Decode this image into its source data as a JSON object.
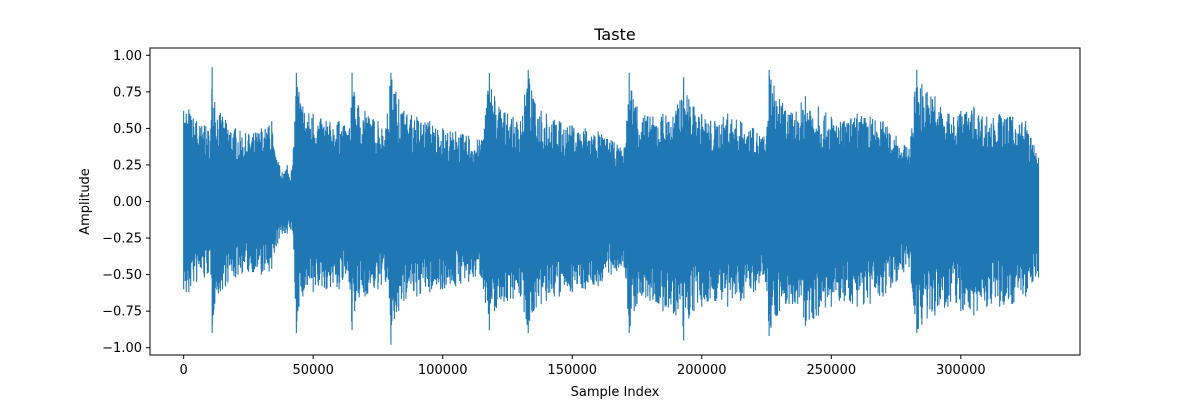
{
  "chart_data": {
    "type": "line",
    "title": "Taste",
    "xlabel": "Sample Index",
    "ylabel": "Amplitude",
    "xlim": [
      -13000,
      346000
    ],
    "ylim": [
      -1.05,
      1.05
    ],
    "x_ticks": [
      0,
      50000,
      100000,
      150000,
      200000,
      250000,
      300000
    ],
    "x_tick_labels": [
      "0",
      "50000",
      "100000",
      "150000",
      "200000",
      "250000",
      "300000"
    ],
    "y_ticks": [
      1.0,
      0.75,
      0.5,
      0.25,
      0.0,
      -0.25,
      -0.5,
      -0.75,
      -1.0
    ],
    "y_tick_labels": [
      "1.00",
      "0.75",
      "0.50",
      "0.25",
      "0.00",
      "−0.25",
      "−0.50",
      "−0.75",
      "−1.00"
    ],
    "grid": false,
    "legend": false,
    "line_color": "#1f77b4",
    "series": [
      {
        "x": [
          0,
          1000,
          2000,
          5000,
          8000,
          10500,
          11000,
          12000,
          15000,
          20000,
          25000,
          30000,
          33000,
          34000,
          35000,
          38000,
          40000,
          42000,
          43500,
          44500,
          46000,
          50000,
          55000,
          60000,
          64000,
          65000,
          66000,
          70000,
          75000,
          78000,
          80000,
          83000,
          85000,
          90000,
          95000,
          100000,
          105000,
          110000,
          115000,
          118000,
          120000,
          125000,
          130000,
          133000,
          135000,
          138000,
          140000,
          145000,
          150000,
          155000,
          160000,
          165000,
          170000,
          172000,
          175000,
          180000,
          185000,
          190000,
          193000,
          195000,
          197000,
          200000,
          205000,
          210000,
          215000,
          220000,
          225000,
          226000,
          230000,
          235000,
          240000,
          245000,
          250000,
          255000,
          260000,
          265000,
          270000,
          275000,
          280000,
          283000,
          287000,
          290000,
          295000,
          300000,
          305000,
          310000,
          315000,
          320000,
          325000,
          330000
        ],
        "upper": [
          0.62,
          0.6,
          0.63,
          0.55,
          0.52,
          0.5,
          0.92,
          0.68,
          0.58,
          0.5,
          0.46,
          0.5,
          0.52,
          0.55,
          0.35,
          0.2,
          0.25,
          0.22,
          0.88,
          0.75,
          0.65,
          0.6,
          0.55,
          0.55,
          0.5,
          0.88,
          0.72,
          0.62,
          0.55,
          0.5,
          0.88,
          0.7,
          0.62,
          0.58,
          0.55,
          0.5,
          0.48,
          0.45,
          0.42,
          0.88,
          0.72,
          0.6,
          0.55,
          0.9,
          0.7,
          0.62,
          0.6,
          0.55,
          0.52,
          0.5,
          0.48,
          0.42,
          0.36,
          0.88,
          0.65,
          0.58,
          0.6,
          0.62,
          0.85,
          0.7,
          0.65,
          0.6,
          0.55,
          0.6,
          0.55,
          0.5,
          0.45,
          0.9,
          0.7,
          0.6,
          0.72,
          0.65,
          0.58,
          0.55,
          0.6,
          0.58,
          0.55,
          0.45,
          0.36,
          0.9,
          0.75,
          0.72,
          0.6,
          0.62,
          0.65,
          0.58,
          0.6,
          0.58,
          0.55,
          0.3
        ],
        "lower": [
          -0.6,
          -0.62,
          -0.62,
          -0.55,
          -0.52,
          -0.5,
          -0.9,
          -0.7,
          -0.6,
          -0.52,
          -0.48,
          -0.5,
          -0.48,
          -0.46,
          -0.35,
          -0.22,
          -0.22,
          -0.2,
          -0.9,
          -0.72,
          -0.65,
          -0.62,
          -0.6,
          -0.6,
          -0.55,
          -0.88,
          -0.75,
          -0.65,
          -0.6,
          -0.55,
          -0.98,
          -0.75,
          -0.68,
          -0.65,
          -0.62,
          -0.6,
          -0.58,
          -0.55,
          -0.52,
          -0.88,
          -0.75,
          -0.68,
          -0.65,
          -0.9,
          -0.75,
          -0.7,
          -0.68,
          -0.65,
          -0.62,
          -0.6,
          -0.58,
          -0.5,
          -0.45,
          -0.9,
          -0.7,
          -0.68,
          -0.75,
          -0.78,
          -0.95,
          -0.8,
          -0.75,
          -0.72,
          -0.68,
          -0.72,
          -0.68,
          -0.62,
          -0.55,
          -0.92,
          -0.75,
          -0.7,
          -0.85,
          -0.78,
          -0.72,
          -0.68,
          -0.72,
          -0.7,
          -0.65,
          -0.55,
          -0.45,
          -0.9,
          -0.8,
          -0.78,
          -0.72,
          -0.75,
          -0.78,
          -0.72,
          -0.72,
          -0.7,
          -0.65,
          -0.52
        ]
      }
    ]
  }
}
